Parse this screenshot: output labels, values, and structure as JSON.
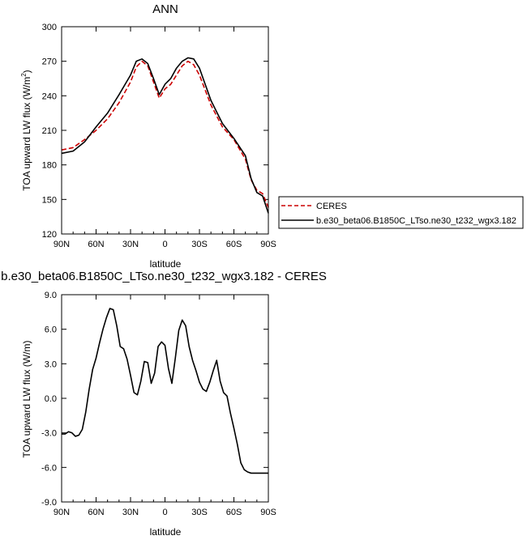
{
  "chart_data": [
    {
      "type": "line",
      "title": "ANN",
      "xlabel": "latitude",
      "ylabel_main": "TOA upward LW flux (W/m",
      "ylabel_sup": "2",
      "ylabel_close": ")",
      "xlim": [
        90,
        -90
      ],
      "ylim": [
        120,
        300
      ],
      "xticks": [
        90,
        60,
        30,
        0,
        -30,
        -60,
        -90
      ],
      "xtick_labels": [
        "90N",
        "60N",
        "30N",
        "0",
        "30S",
        "60S",
        "90S"
      ],
      "yticks": [
        120,
        150,
        180,
        210,
        240,
        270,
        300
      ],
      "ytick_labels": [
        "120",
        "150",
        "180",
        "210",
        "240",
        "270",
        "300"
      ],
      "legend_placement": "outside-right",
      "series": [
        {
          "name": "CERES",
          "color": "#cc0000",
          "dash": true,
          "x": [
            90,
            80,
            70,
            60,
            50,
            40,
            30,
            25,
            20,
            15,
            10,
            5,
            0,
            -5,
            -10,
            -15,
            -20,
            -25,
            -30,
            -40,
            -50,
            -60,
            -70,
            -75,
            -80,
            -85,
            -90
          ],
          "y": [
            193,
            195,
            202,
            210,
            220,
            234,
            252,
            265,
            270,
            266,
            252,
            238,
            246,
            250,
            258,
            266,
            270,
            267,
            258,
            232,
            213,
            202,
            185,
            167,
            158,
            155,
            143
          ]
        },
        {
          "name": "b.e30_beta06.B1850C_LTso.ne30_t232_wgx3.182",
          "color": "#000000",
          "dash": false,
          "x": [
            90,
            80,
            70,
            60,
            50,
            40,
            30,
            25,
            20,
            15,
            10,
            5,
            0,
            -5,
            -10,
            -15,
            -20,
            -25,
            -30,
            -40,
            -50,
            -60,
            -70,
            -75,
            -80,
            -85,
            -90
          ],
          "y": [
            190,
            192,
            200,
            213,
            225,
            241,
            258,
            270,
            272,
            268,
            255,
            241,
            250,
            255,
            264,
            270,
            273,
            272,
            264,
            236,
            216,
            203,
            188,
            168,
            156,
            153,
            138
          ]
        }
      ]
    },
    {
      "type": "line",
      "title": "b.e30_beta06.B1850C_LTso.ne30_t232_wgx3.182 - CERES",
      "xlabel": "latitude",
      "ylabel": "TOA upward LW flux (W/m)",
      "xlim": [
        90,
        -90
      ],
      "ylim": [
        -9,
        9
      ],
      "xticks": [
        90,
        60,
        30,
        0,
        -30,
        -60,
        -90
      ],
      "xtick_labels": [
        "90N",
        "60N",
        "30N",
        "0",
        "30S",
        "60S",
        "90S"
      ],
      "yticks": [
        -9,
        -6,
        -3,
        0,
        3,
        6,
        9
      ],
      "ytick_labels": [
        "-9.0",
        "-6.0",
        "-3.0",
        "0.0",
        "3.0",
        "6.0",
        "9.0"
      ],
      "series": [
        {
          "color": "#000000",
          "x": [
            90,
            87,
            84,
            81,
            78,
            75,
            72,
            69,
            66,
            63,
            60,
            57,
            54,
            51,
            48,
            45,
            42,
            39,
            36,
            33,
            30,
            27,
            24,
            21,
            18,
            15,
            12,
            9,
            6,
            3,
            0,
            -3,
            -6,
            -9,
            -12,
            -15,
            -18,
            -21,
            -24,
            -27,
            -30,
            -33,
            -36,
            -39,
            -42,
            -45,
            -48,
            -51,
            -54,
            -57,
            -60,
            -63,
            -66,
            -69,
            -72,
            -75,
            -78,
            -81,
            -84,
            -87,
            -90
          ],
          "y": [
            -3.1,
            -3.1,
            -2.9,
            -3.0,
            -3.3,
            -3.2,
            -2.7,
            -1.2,
            0.8,
            2.5,
            3.5,
            4.8,
            6.0,
            7.0,
            7.8,
            7.7,
            6.3,
            4.5,
            4.3,
            3.4,
            2.0,
            0.5,
            0.3,
            1.5,
            3.2,
            3.1,
            1.3,
            2.2,
            4.5,
            4.9,
            4.6,
            2.6,
            1.3,
            3.5,
            5.9,
            6.8,
            6.3,
            4.5,
            3.3,
            2.4,
            1.4,
            0.8,
            0.6,
            1.4,
            2.4,
            3.3,
            1.5,
            0.5,
            0.2,
            -1.3,
            -2.6,
            -4.0,
            -5.6,
            -6.2,
            -6.4,
            -6.5,
            -6.5,
            -6.5,
            -6.5,
            -6.5,
            -6.5
          ]
        }
      ]
    }
  ]
}
